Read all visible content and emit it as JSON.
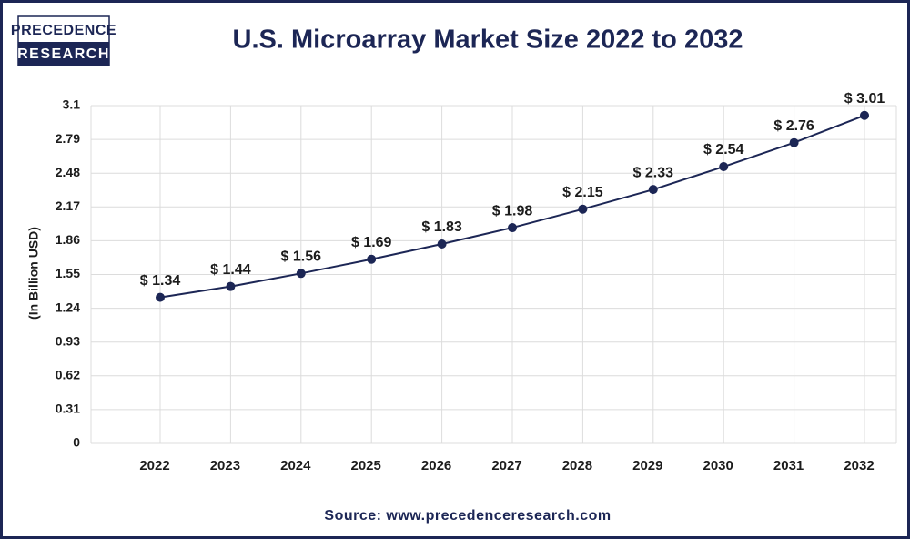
{
  "logo": [
    "PRECEDENCE",
    "RESEARCH"
  ],
  "chart_data": {
    "type": "line",
    "title": "U.S. Microarray Market Size 2022 to 2032",
    "y_label": "(In Billion USD)",
    "source": "Source: www.precedenceresearch.com",
    "categories": [
      "2022",
      "2023",
      "2024",
      "2025",
      "2026",
      "2027",
      "2028",
      "2029",
      "2030",
      "2031",
      "2032"
    ],
    "values": [
      1.34,
      1.44,
      1.56,
      1.69,
      1.83,
      1.98,
      2.15,
      2.33,
      2.54,
      2.76,
      3.01
    ],
    "value_labels": [
      "$ 1.34",
      "$ 1.44",
      "$ 1.56",
      "$ 1.69",
      "$ 1.83",
      "$ 1.98",
      "$ 2.15",
      "$ 2.33",
      "$ 2.54",
      "$ 2.76",
      "$ 3.01"
    ],
    "color": "#1c2655",
    "ylim": [
      0,
      3.1
    ],
    "yticks": [
      0,
      0.31,
      0.62,
      0.93,
      1.24,
      1.55,
      1.86,
      2.17,
      2.48,
      2.79,
      3.1
    ],
    "grid": true
  }
}
